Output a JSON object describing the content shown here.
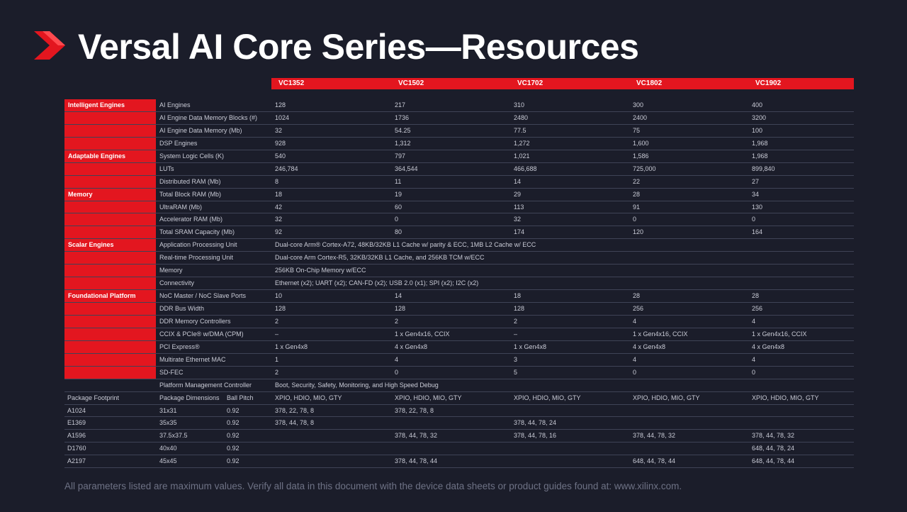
{
  "title": "Versal AI Core Series—Resources",
  "devices": [
    "VC1352",
    "VC1502",
    "VC1702",
    "VC1802",
    "VC1902"
  ],
  "categories": [
    {
      "label": "Intelligent Engines",
      "row": 0
    },
    {
      "label": "Adaptable Engines",
      "row": 4
    },
    {
      "label": "Memory",
      "row": 7
    },
    {
      "label": "Scalar Engines",
      "row": 11
    },
    {
      "label": "Foundational Platform",
      "row": 15
    }
  ],
  "rows": [
    {
      "label": "AI Engines",
      "values": [
        "128",
        "217",
        "310",
        "300",
        "400"
      ]
    },
    {
      "label": "AI Engine Data Memory Blocks (#)",
      "values": [
        "1024",
        "1736",
        "2480",
        "2400",
        "3200"
      ]
    },
    {
      "label": "AI Engine Data Memory (Mb)",
      "values": [
        "32",
        "54.25",
        "77.5",
        "75",
        "100"
      ]
    },
    {
      "label": "DSP Engines",
      "values": [
        "928",
        "1,312",
        "1,272",
        "1,600",
        "1,968"
      ]
    },
    {
      "label": "System Logic Cells (K)",
      "values": [
        "540",
        "797",
        "1,021",
        "1,586",
        "1,968"
      ]
    },
    {
      "label": "LUTs",
      "values": [
        "246,784",
        "364,544",
        "466,688",
        "725,000",
        "899,840"
      ]
    },
    {
      "label": "Distributed RAM (Mb)",
      "values": [
        "8",
        "11",
        "14",
        "22",
        "27"
      ]
    },
    {
      "label": "Total Block RAM (Mb)",
      "values": [
        "18",
        "19",
        "29",
        "28",
        "34"
      ]
    },
    {
      "label": "UltraRAM (Mb)",
      "values": [
        "42",
        "60",
        "113",
        "91",
        "130"
      ]
    },
    {
      "label": "Accelerator RAM (Mb)",
      "values": [
        "32",
        "0",
        "32",
        "0",
        "0"
      ]
    },
    {
      "label": "Total SRAM Capacity (Mb)",
      "values": [
        "92",
        "80",
        "174",
        "120",
        "164"
      ]
    },
    {
      "label": "Application Processing Unit",
      "span": "Dual-core Arm® Cortex-A72, 48KB/32KB L1 Cache w/ parity & ECC, 1MB L2 Cache w/ ECC"
    },
    {
      "label": "Real-time Processing Unit",
      "span": "Dual-core Arm Cortex-R5, 32KB/32KB L1 Cache, and 256KB TCM w/ECC"
    },
    {
      "label": "Memory",
      "span": "256KB On-Chip Memory w/ECC"
    },
    {
      "label": "Connectivity",
      "span": "Ethernet (x2); UART (x2); CAN-FD (x2); USB 2.0 (x1); SPI (x2); I2C (x2)"
    },
    {
      "label": "NoC Master / NoC Slave Ports",
      "values": [
        "10",
        "14",
        "18",
        "28",
        "28"
      ]
    },
    {
      "label": "DDR Bus Width",
      "values": [
        "128",
        "128",
        "128",
        "256",
        "256"
      ]
    },
    {
      "label": "DDR Memory Controllers",
      "values": [
        "2",
        "2",
        "2",
        "4",
        "4"
      ]
    },
    {
      "label": "CCIX & PCIe® w/DMA (CPM)",
      "values": [
        "–",
        "1 x Gen4x16, CCIX",
        "–",
        "1 x Gen4x16, CCIX",
        "1 x Gen4x16, CCIX"
      ]
    },
    {
      "label": "PCI Express®",
      "values": [
        "1 x Gen4x8",
        "4 x Gen4x8",
        "1 x Gen4x8",
        "4 x Gen4x8",
        "4 x Gen4x8"
      ]
    },
    {
      "label": "Multirate Ethernet MAC",
      "values": [
        "1",
        "4",
        "3",
        "4",
        "4"
      ]
    },
    {
      "label": "SD-FEC",
      "values": [
        "2",
        "0",
        "5",
        "0",
        "0"
      ]
    },
    {
      "label": "Platform Management Controller",
      "span": "Boot, Security, Safety, Monitoring, and High Speed Debug"
    }
  ],
  "package_header": {
    "name": "Package Footprint",
    "dim": "Package Dimensions",
    "pitch": "Ball Pitch",
    "values": [
      "XPIO, HDIO, MIO, GTY",
      "XPIO, HDIO, MIO, GTY",
      "XPIO, HDIO, MIO, GTY",
      "XPIO, HDIO, MIO, GTY",
      "XPIO, HDIO, MIO, GTY"
    ]
  },
  "packages": [
    {
      "name": "A1024",
      "dim": "31x31",
      "pitch": "0.92",
      "values": [
        "378, 22, 78, 8",
        "378, 22, 78, 8",
        "",
        "",
        ""
      ]
    },
    {
      "name": "E1369",
      "dim": "35x35",
      "pitch": "0.92",
      "values": [
        "378, 44, 78, 8",
        "",
        "378, 44, 78, 24",
        "",
        ""
      ]
    },
    {
      "name": "A1596",
      "dim": "37.5x37.5",
      "pitch": "0.92",
      "values": [
        "",
        "378, 44, 78, 32",
        "378, 44, 78, 16",
        "378, 44, 78, 32",
        "378, 44, 78, 32"
      ]
    },
    {
      "name": "D1760",
      "dim": "40x40",
      "pitch": "0.92",
      "values": [
        "",
        "",
        "",
        "",
        "648, 44, 78, 24"
      ]
    },
    {
      "name": "A2197",
      "dim": "45x45",
      "pitch": "0.92",
      "values": [
        "",
        "378, 44, 78, 44",
        "",
        "648, 44, 78, 44",
        "648, 44, 78, 44"
      ]
    }
  ],
  "footer": "All parameters listed are maximum values. Verify all data in this document with the device data sheets or product guides found at: www.xilinx.com.",
  "colors": {
    "background": "#1b1d2a",
    "accent": "#e3161f",
    "text": "#c9cbd6",
    "title": "#ffffff",
    "footer": "#6e7285"
  }
}
